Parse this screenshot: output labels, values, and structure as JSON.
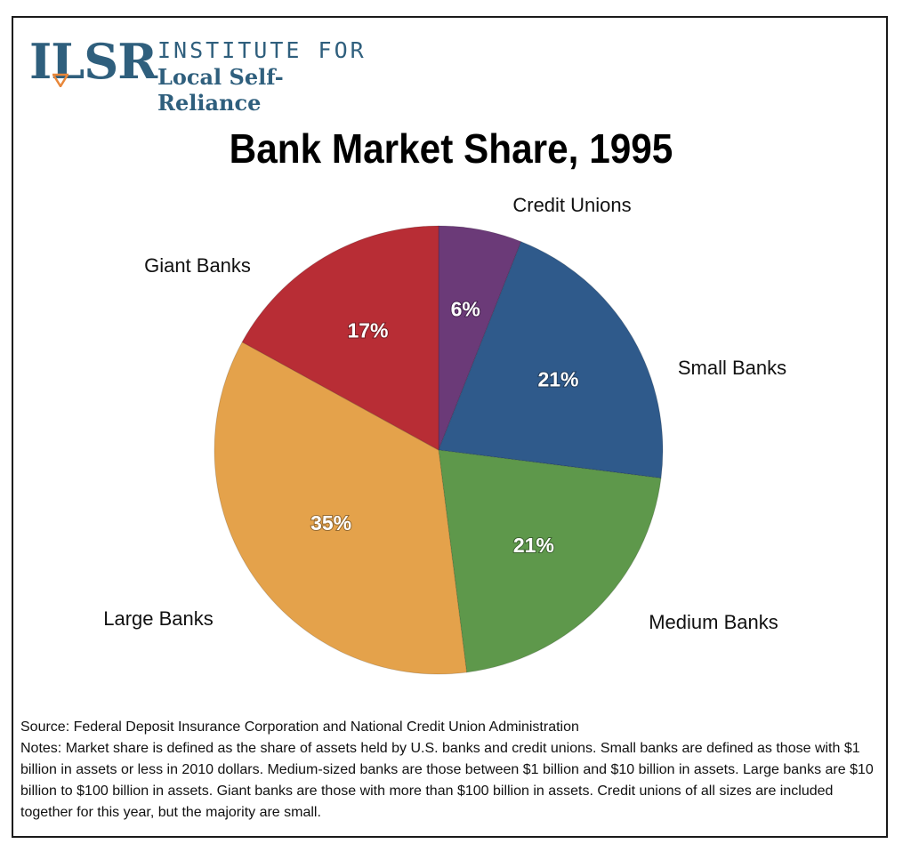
{
  "logo": {
    "mark": "ILSR",
    "line1": "INSTITUTE FOR",
    "line2": "Local Self-Reliance",
    "color": "#2f5f7d",
    "accent": "#e8873a"
  },
  "chart_data": {
    "type": "pie",
    "title": "Bank Market Share, 1995",
    "slices": [
      {
        "label": "Credit Unions",
        "value": 6,
        "display": "6%",
        "color": "#6b3a78"
      },
      {
        "label": "Small Banks",
        "value": 21,
        "display": "21%",
        "color": "#2f5a8b"
      },
      {
        "label": "Medium Banks",
        "value": 21,
        "display": "21%",
        "color": "#5e984b"
      },
      {
        "label": "Large Banks",
        "value": 35,
        "display": "35%",
        "color": "#e4a24b"
      },
      {
        "label": "Giant Banks",
        "value": 17,
        "display": "17%",
        "color": "#b82d35"
      }
    ],
    "start_angle_deg": 0,
    "direction": "clockwise"
  },
  "footer": {
    "source": "Source: Federal Deposit Insurance Corporation and National Credit Union Administration",
    "notes": "Notes: Market share is defined as the share of assets held by U.S. banks and credit unions. Small banks are defined as those with $1 billion in assets or less in 2010 dollars.  Medium-sized banks are those between $1 billion and $10 billion in assets.  Large banks are $10 billion to $100 billion in assets.  Giant banks are those with more than $100 billion in assets. Credit unions of all sizes are included together for this year, but the majority are small."
  }
}
